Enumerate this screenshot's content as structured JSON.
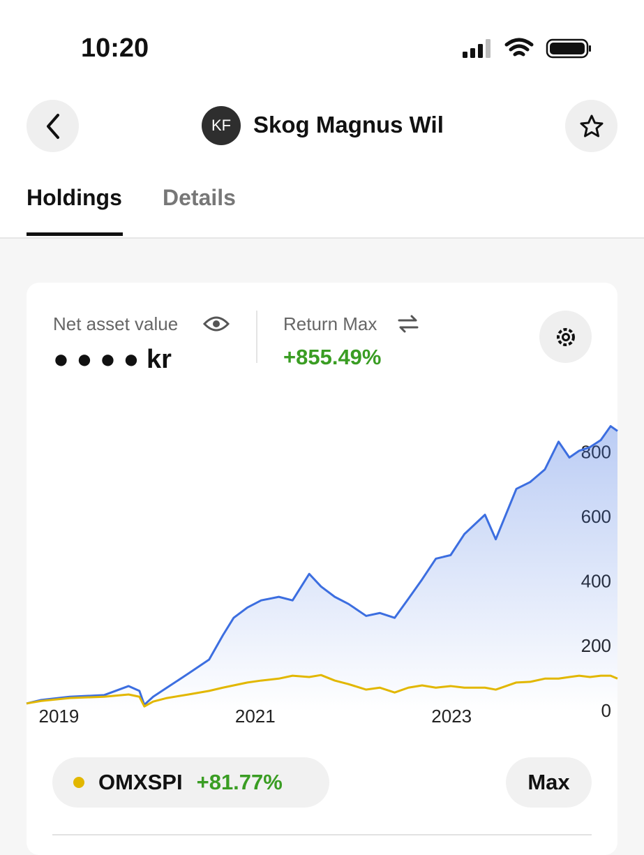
{
  "status_bar": {
    "time": "10:20"
  },
  "header": {
    "avatar": "KF",
    "title": "Skog Magnus Wil"
  },
  "tabs": [
    "Holdings",
    "Details"
  ],
  "summary": {
    "nav_label": "Net asset value",
    "nav_value": "● ● ● ● kr",
    "return_label": "Return Max",
    "return_value": "+855.49%"
  },
  "chart_data": {
    "type": "line",
    "x": [
      2018.67,
      2018.82,
      2019.11,
      2019.46,
      2019.71,
      2019.82,
      2019.87,
      2019.96,
      2020.1,
      2020.32,
      2020.53,
      2020.67,
      2020.78,
      2020.92,
      2021.06,
      2021.24,
      2021.38,
      2021.55,
      2021.67,
      2021.81,
      2021.95,
      2022.13,
      2022.27,
      2022.42,
      2022.56,
      2022.7,
      2022.84,
      2022.99,
      2023.13,
      2023.34,
      2023.45,
      2023.66,
      2023.8,
      2023.95,
      2024.09,
      2024.2,
      2024.3,
      2024.41,
      2024.52,
      2024.62,
      2024.69
    ],
    "series": [
      {
        "color": "#3c6ee0",
        "values": [
          26,
          37,
          47,
          52,
          80,
          65,
          22,
          47,
          75,
          119,
          162,
          237,
          291,
          323,
          345,
          356,
          345,
          427,
          388,
          356,
          334,
          297,
          306,
          291,
          350,
          410,
          474,
          485,
          550,
          610,
          534,
          690,
          711,
          750,
          836,
          787,
          808,
          819,
          841,
          884,
          869
        ]
      },
      {
        "name": "OMXSPI",
        "color": "#e2b700",
        "values": [
          26,
          34,
          43,
          47,
          54,
          47,
          17,
          32,
          43,
          54,
          65,
          75,
          82,
          91,
          97,
          103,
          112,
          108,
          114,
          97,
          86,
          69,
          75,
          60,
          75,
          82,
          75,
          80,
          75,
          75,
          69,
          91,
          93,
          103,
          103,
          108,
          112,
          108,
          112,
          112,
          103
        ]
      }
    ],
    "benchmark_return": "+81.77%",
    "range_button": "Max",
    "xlim": [
      2018.67,
      2024.69
    ],
    "xticks": [
      2019,
      2021,
      2023
    ],
    "ylim": [
      0,
      950
    ],
    "yticks": [
      0,
      200,
      400,
      600,
      800
    ],
    "grid": false,
    "area_fill": true
  }
}
